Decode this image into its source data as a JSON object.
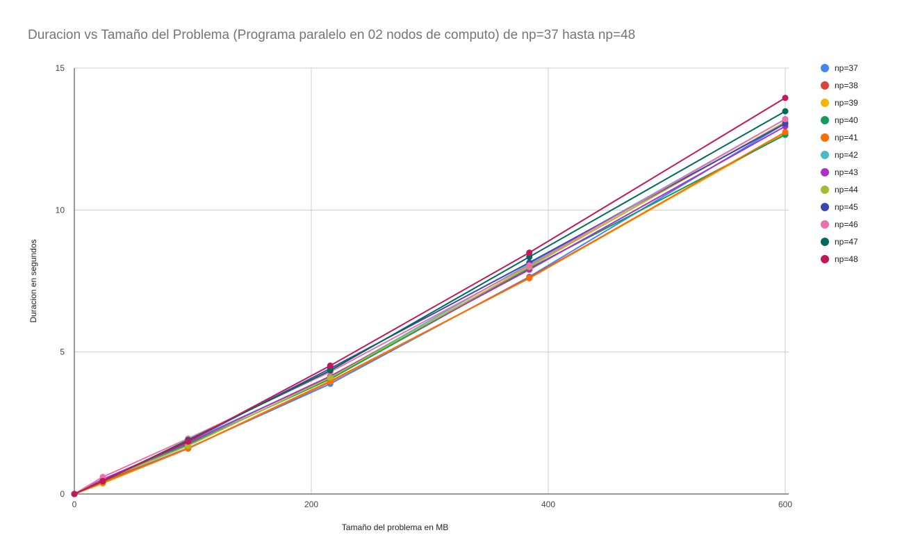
{
  "chart_data": {
    "type": "line",
    "title": "Duracion vs Tamaño del Problema (Programa paralelo en 02 nodos de computo) de np=37 hasta np=48",
    "xlabel": "Tamaño del problema en MB",
    "ylabel": "Duracion en segundos",
    "xlim": [
      0,
      600
    ],
    "ylim": [
      0,
      15
    ],
    "xticks": [
      "0",
      "200",
      "400",
      "600"
    ],
    "yticks": [
      "0",
      "5",
      "10",
      "15"
    ],
    "grid": true,
    "legend_position": "right",
    "x": [
      0,
      24,
      96,
      216,
      384,
      600
    ],
    "series": [
      {
        "name": "np=37",
        "color": "#4285F4",
        "values": [
          0,
          0.44,
          1.62,
          3.88,
          7.65,
          13.05
        ]
      },
      {
        "name": "np=38",
        "color": "#DB4437",
        "values": [
          0,
          0.42,
          1.6,
          3.95,
          7.62,
          12.72
        ]
      },
      {
        "name": "np=39",
        "color": "#F4B400",
        "values": [
          0,
          0.37,
          1.6,
          3.97,
          7.6,
          12.7
        ]
      },
      {
        "name": "np=40",
        "color": "#0F9D58",
        "values": [
          0,
          0.45,
          1.75,
          4.05,
          7.95,
          12.65
        ]
      },
      {
        "name": "np=41",
        "color": "#FF6D00",
        "values": [
          0,
          0.4,
          1.6,
          3.98,
          7.6,
          12.75
        ]
      },
      {
        "name": "np=42",
        "color": "#46BDC6",
        "values": [
          0,
          0.5,
          1.85,
          4.12,
          8.1,
          13.2
        ]
      },
      {
        "name": "np=43",
        "color": "#AB30C4",
        "values": [
          0,
          0.52,
          1.8,
          4.15,
          7.9,
          12.95
        ]
      },
      {
        "name": "np=44",
        "color": "#ABB82D",
        "values": [
          0,
          0.48,
          1.7,
          4.1,
          8.0,
          13.1
        ]
      },
      {
        "name": "np=45",
        "color": "#3949AB",
        "values": [
          0,
          0.47,
          1.85,
          4.42,
          8.15,
          13.05
        ]
      },
      {
        "name": "np=46",
        "color": "#F06EAA",
        "values": [
          0,
          0.6,
          1.95,
          4.3,
          8.05,
          13.2
        ]
      },
      {
        "name": "np=47",
        "color": "#00695C",
        "values": [
          0,
          0.45,
          1.9,
          4.35,
          8.35,
          13.48
        ]
      },
      {
        "name": "np=48",
        "color": "#C2185B",
        "values": [
          0,
          0.46,
          1.85,
          4.52,
          8.5,
          13.95
        ]
      }
    ]
  }
}
